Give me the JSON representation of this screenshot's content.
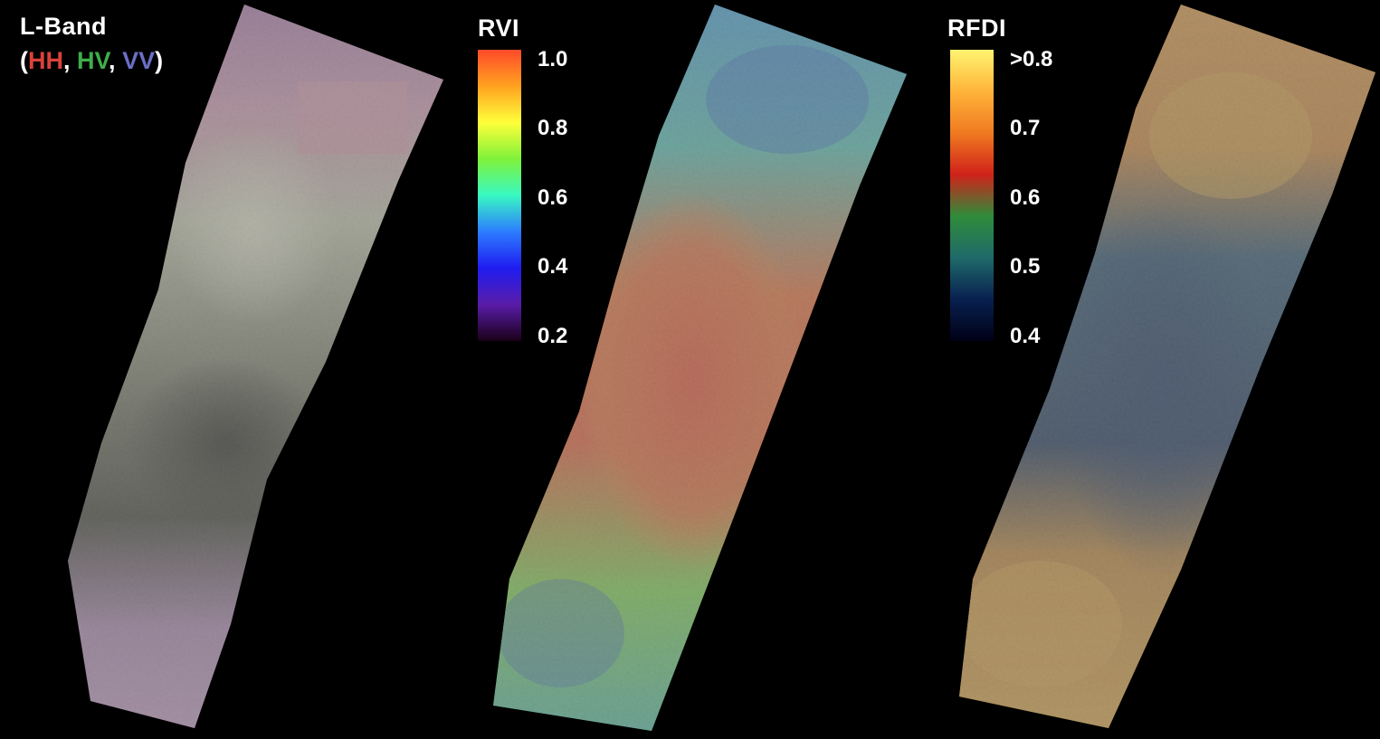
{
  "panels": [
    {
      "title": "L-Band",
      "subtitle": {
        "open": "(",
        "hh": "HH",
        "sep1": ", ",
        "hv": "HV",
        "sep2": ", ",
        "vv": "VV",
        "close": ")"
      },
      "colors": {
        "hh": "#d9423a",
        "hv": "#3fae49",
        "vv": "#6a6fc6"
      }
    },
    {
      "title": "RVI",
      "colorbar": {
        "ticks": [
          "1.0",
          "0.8",
          "0.6",
          "0.4",
          "0.2"
        ],
        "stops": [
          "#ff4a2a",
          "#ffa21f",
          "#ffff3a",
          "#7ff23a",
          "#38f8c2",
          "#2d7cff",
          "#1f1cf0",
          "#5a1ca8",
          "#1a0018"
        ]
      }
    },
    {
      "title": "RFDI",
      "colorbar": {
        "ticks": [
          ">0.8",
          "0.7",
          "0.6",
          "0.5",
          "0.4"
        ],
        "stops": [
          "#fff470",
          "#ffb43a",
          "#f07a20",
          "#d0221a",
          "#2f8c3a",
          "#1f6a6a",
          "#08204f",
          "#000016"
        ]
      }
    }
  ]
}
